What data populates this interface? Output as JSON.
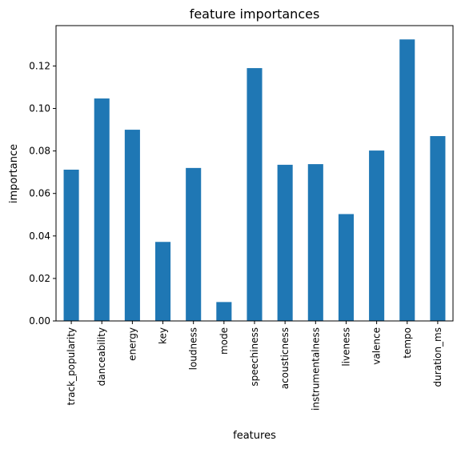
{
  "chart_data": {
    "type": "bar",
    "title": "feature importances",
    "xlabel": "features",
    "ylabel": "importance",
    "categories": [
      "track_popularity",
      "danceability",
      "energy",
      "key",
      "loudness",
      "mode",
      "speechiness",
      "acousticness",
      "instrumentalness",
      "liveness",
      "valence",
      "tempo",
      "duration_ms"
    ],
    "values": [
      0.0712,
      0.1047,
      0.09,
      0.0372,
      0.072,
      0.0089,
      0.119,
      0.0735,
      0.0738,
      0.0503,
      0.0802,
      0.1325,
      0.087
    ],
    "ylim": [
      0,
      0.139
    ],
    "yticks": [
      0.0,
      0.02,
      0.04,
      0.06,
      0.08,
      0.1,
      0.12
    ],
    "ytick_labels": [
      "0.00",
      "0.02",
      "0.04",
      "0.06",
      "0.08",
      "0.10",
      "0.12"
    ],
    "bar_color": "#1f77b4",
    "grid": false,
    "legend": "none"
  }
}
